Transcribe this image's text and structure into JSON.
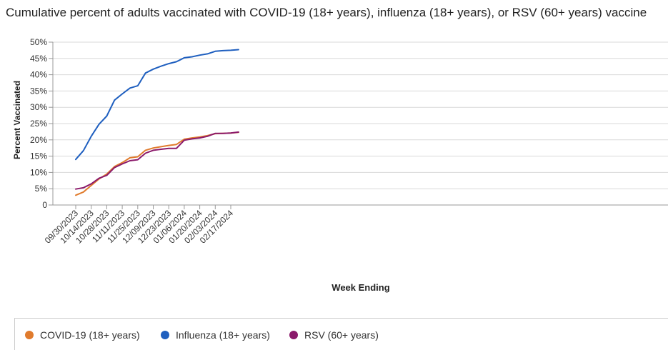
{
  "chart_data": {
    "type": "line",
    "title": "Cumulative percent of adults vaccinated with COVID-19 (18+ years), influenza (18+ years), or RSV (60+ years) vaccine",
    "xlabel": "Week Ending",
    "ylabel": "Percent Vaccinated",
    "ylim": [
      0,
      50
    ],
    "y_ticks": [
      "0",
      "5%",
      "10%",
      "15%",
      "20%",
      "25%",
      "30%",
      "35%",
      "40%",
      "45%",
      "50%"
    ],
    "x_tick_labels": [
      "09/30/2023",
      "10/14/2023",
      "10/28/2023",
      "11/11/2023",
      "11/25/2023",
      "12/09/2023",
      "12/23/2023",
      "01/06/2024",
      "01/20/2024",
      "02/03/2024",
      "02/17/2024"
    ],
    "x": [
      "09/30/2023",
      "10/07/2023",
      "10/14/2023",
      "10/21/2023",
      "10/28/2023",
      "11/04/2023",
      "11/11/2023",
      "11/18/2023",
      "11/25/2023",
      "12/02/2023",
      "12/09/2023",
      "12/16/2023",
      "12/23/2023",
      "12/30/2023",
      "01/06/2024",
      "01/13/2024",
      "01/20/2024",
      "01/27/2024",
      "02/03/2024",
      "02/10/2024",
      "02/17/2024",
      "02/24/2024"
    ],
    "grid": true,
    "legend_position": "bottom",
    "series": [
      {
        "name": "COVID-19 (18+ years)",
        "color": "#e07b2d",
        "values": [
          3.0,
          4.0,
          6.0,
          8.0,
          9.5,
          11.8,
          13.0,
          14.5,
          14.8,
          16.8,
          17.5,
          17.9,
          18.3,
          18.6,
          20.2,
          20.6,
          20.9,
          21.3,
          21.9,
          22.0,
          22.1,
          22.3
        ]
      },
      {
        "name": "Influenza (18+ years)",
        "color": "#1f5fbf",
        "values": [
          14.0,
          16.7,
          21.1,
          24.8,
          27.3,
          32.2,
          34.1,
          35.9,
          36.6,
          40.5,
          41.7,
          42.6,
          43.4,
          44.0,
          45.2,
          45.5,
          46.0,
          46.4,
          47.2,
          47.4,
          47.5,
          47.7
        ]
      },
      {
        "name": "RSV (60+ years)",
        "color": "#8b1a6b",
        "values": [
          4.9,
          5.3,
          6.5,
          8.2,
          9.1,
          11.5,
          12.6,
          13.6,
          13.9,
          15.9,
          16.8,
          17.1,
          17.4,
          17.4,
          19.9,
          20.3,
          20.6,
          21.1,
          22.0,
          22.0,
          22.1,
          22.4
        ]
      }
    ]
  }
}
